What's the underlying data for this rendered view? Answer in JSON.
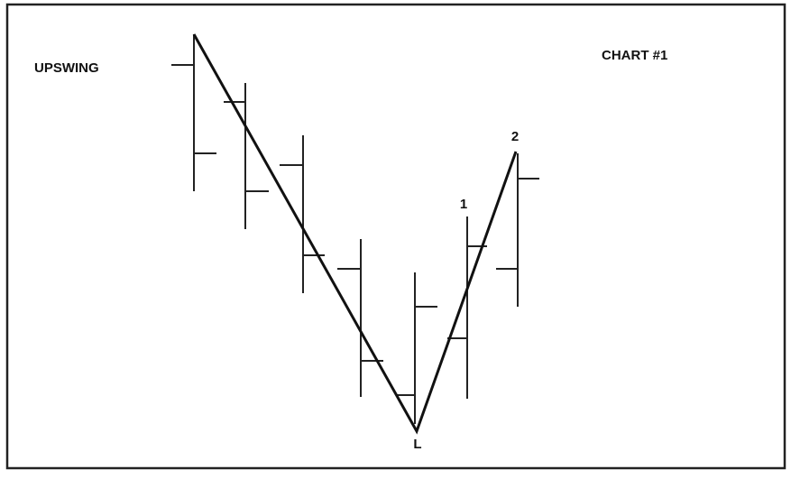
{
  "title": "UPSWING",
  "chart_label": "CHART #1",
  "points": {
    "point_1": "1",
    "point_2": "2",
    "low": "L"
  }
}
